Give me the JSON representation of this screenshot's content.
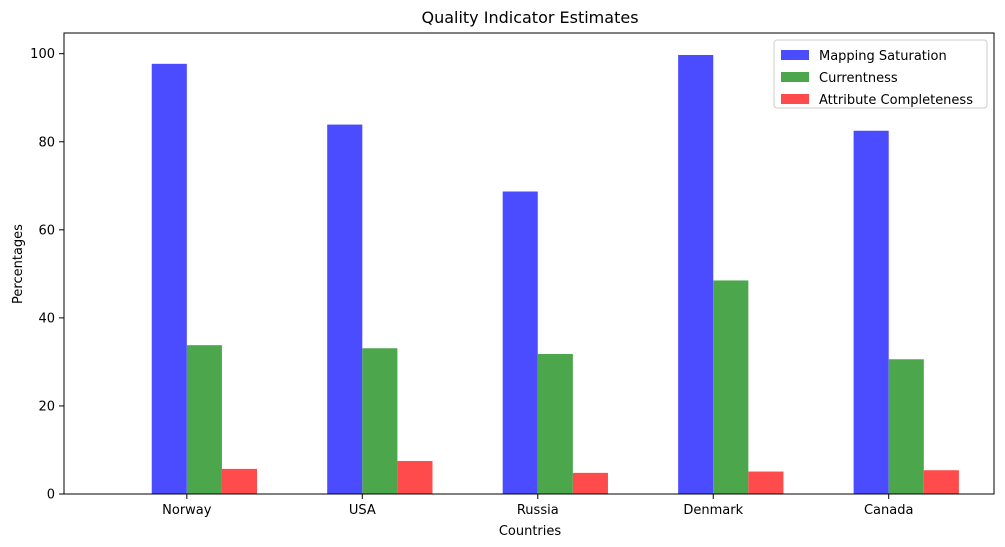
{
  "chart_data": {
    "type": "bar",
    "title": "Quality Indicator Estimates",
    "xlabel": "Countries",
    "ylabel": "Percentages",
    "categories": [
      "Norway",
      "USA",
      "Russia",
      "Denmark",
      "Canada"
    ],
    "series": [
      {
        "name": "Mapping Saturation",
        "color": "#4b4bff",
        "values": [
          97.7,
          83.9,
          68.7,
          99.7,
          82.5
        ]
      },
      {
        "name": "Currentness",
        "color": "#4ca64c",
        "values": [
          33.8,
          33.1,
          31.8,
          48.5,
          30.6
        ]
      },
      {
        "name": "Attribute Completeness",
        "color": "#ff4b4b",
        "values": [
          5.7,
          7.5,
          4.8,
          5.1,
          5.4
        ]
      }
    ],
    "ylim": [
      0,
      104.7
    ],
    "yticks": [
      0,
      20,
      40,
      60,
      80,
      100
    ],
    "legend_position": "top-right",
    "grid": false
  }
}
